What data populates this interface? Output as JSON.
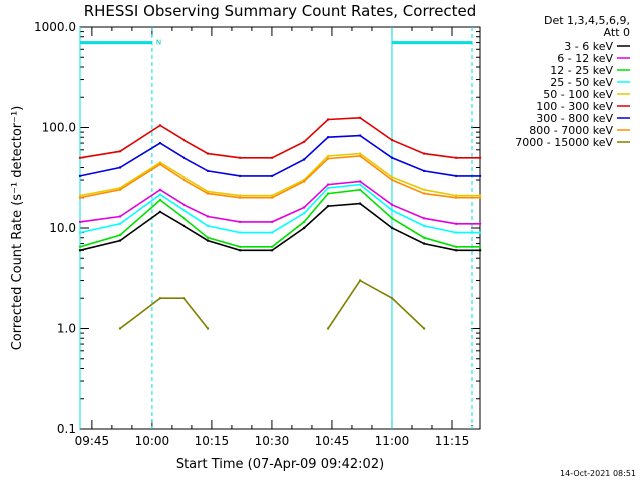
{
  "chart_data": {
    "type": "line",
    "title": "RHESSI Observing Summary Count Rates, Corrected",
    "xlabel": "Start Time (07-Apr-09 09:42:02)",
    "ylabel": "Corrected Count Rate (s⁻¹ detector⁻¹)",
    "yscale": "log",
    "ylim": [
      0.1,
      1000.0
    ],
    "xlim": [
      "09:42:02",
      "11:22:00"
    ],
    "x_ticks": [
      "09:45",
      "10:00",
      "10:15",
      "10:30",
      "10:45",
      "11:00",
      "11:15"
    ],
    "y_ticks": [
      "0.1",
      "1.0",
      "10.0",
      "100.0",
      "1000.0"
    ],
    "legend_header": [
      "Det 1,3,4,5,6,9,",
      "Att 0"
    ],
    "legend_position": "right",
    "x_minutes": [
      0,
      10,
      20,
      26,
      32,
      40,
      48,
      56,
      62,
      70,
      78,
      86,
      94,
      100
    ],
    "series": [
      {
        "name": "3 - 6 keV",
        "color": "#000000",
        "values": [
          6.0,
          7.5,
          14.5,
          10.5,
          7.5,
          6.0,
          6.0,
          10.0,
          16.5,
          17.5,
          10.0,
          7.0,
          6.0,
          6.0
        ]
      },
      {
        "name": "6 - 12 keV",
        "color": "#e000e0",
        "values": [
          11.5,
          13.0,
          24.0,
          17.0,
          13.0,
          11.5,
          11.5,
          16.0,
          27.0,
          29.0,
          17.0,
          12.5,
          11.0,
          11.0
        ]
      },
      {
        "name": "12 - 25 keV",
        "color": "#00e000",
        "values": [
          6.5,
          8.5,
          19.0,
          12.5,
          8.0,
          6.5,
          6.5,
          11.5,
          22.0,
          24.0,
          12.5,
          8.0,
          6.5,
          6.5
        ]
      },
      {
        "name": "25 - 50 keV",
        "color": "#00ffff",
        "values": [
          9.0,
          11.0,
          21.5,
          15.0,
          10.5,
          9.0,
          9.0,
          14.0,
          25.0,
          27.0,
          15.0,
          10.5,
          9.0,
          9.0
        ]
      },
      {
        "name": "50 - 100 keV",
        "color": "#e6c800",
        "values": [
          21.0,
          25.0,
          45.0,
          32.0,
          23.0,
          21.0,
          21.0,
          30.0,
          52.0,
          55.0,
          32.0,
          24.0,
          21.0,
          21.0
        ]
      },
      {
        "name": "100 - 300 keV",
        "color": "#e00000",
        "values": [
          50.0,
          58.0,
          105.0,
          75.0,
          55.0,
          50.0,
          50.0,
          72.0,
          120.0,
          125.0,
          75.0,
          55.0,
          50.0,
          50.0
        ]
      },
      {
        "name": "300 - 800 keV",
        "color": "#0000e0",
        "values": [
          33.0,
          40.0,
          70.0,
          50.0,
          37.0,
          33.0,
          33.0,
          48.0,
          80.0,
          83.0,
          50.0,
          37.0,
          33.0,
          33.0
        ]
      },
      {
        "name": "800 - 7000 keV",
        "color": "#ff8c00",
        "values": [
          20.0,
          24.0,
          43.0,
          30.0,
          22.0,
          20.0,
          20.0,
          29.0,
          49.0,
          52.0,
          30.0,
          22.0,
          20.0,
          20.0
        ]
      },
      {
        "name": "7000 - 15000 keV",
        "color": "#808000",
        "values": [
          null,
          1.0,
          2.0,
          2.0,
          1.0,
          null,
          null,
          null,
          1.0,
          3.0,
          2.0,
          1.0,
          null,
          null
        ]
      }
    ],
    "annotations": [
      {
        "label": "N",
        "start": "09:42:02",
        "end": "10:00",
        "value": 700.0
      },
      {
        "start": "11:00",
        "end": "11:20",
        "value": 700.0
      }
    ],
    "vertical_markers": [
      {
        "time": "09:42:02",
        "style": "solid"
      },
      {
        "time": "10:00",
        "style": "dashed"
      },
      {
        "time": "11:00",
        "style": "solid"
      },
      {
        "time": "11:20",
        "style": "dashed"
      }
    ],
    "footer_date": "14-Oct-2021 08:51"
  }
}
